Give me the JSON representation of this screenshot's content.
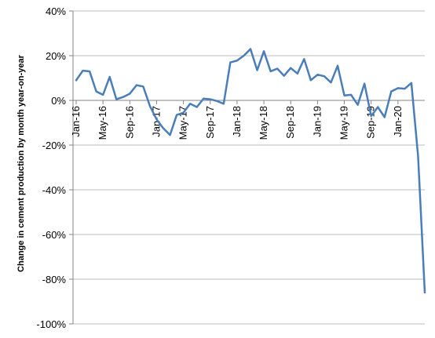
{
  "chart_data": {
    "type": "line",
    "title": "",
    "xlabel": "",
    "ylabel": "Change in cement production by month year-on-year",
    "ylim": [
      -100,
      40
    ],
    "ytick_values": [
      40,
      20,
      0,
      -20,
      -40,
      -60,
      -80,
      -100
    ],
    "ytick_labels": [
      "40%",
      "20%",
      "0%",
      "-20%",
      "-40%",
      "-60%",
      "-80%",
      "-100%"
    ],
    "x_labels": [
      {
        "index": 0,
        "label": "Jan-16"
      },
      {
        "index": 4,
        "label": "May-16"
      },
      {
        "index": 8,
        "label": "Sep-16"
      },
      {
        "index": 12,
        "label": "Jan-17"
      },
      {
        "index": 16,
        "label": "May-17"
      },
      {
        "index": 20,
        "label": "Sep-17"
      },
      {
        "index": 24,
        "label": "Jan-18"
      },
      {
        "index": 28,
        "label": "May-18"
      },
      {
        "index": 32,
        "label": "Sep-18"
      },
      {
        "index": 36,
        "label": "Jan-19"
      },
      {
        "index": 40,
        "label": "May-19"
      },
      {
        "index": 44,
        "label": "Sep-19"
      },
      {
        "index": 48,
        "label": "Jan-20"
      }
    ],
    "grid": "horizontal",
    "legend": "none",
    "series": [
      {
        "color": "#4a7ebb",
        "values": [
          9,
          13.3,
          13,
          4,
          2.5,
          10.5,
          0.5,
          1.5,
          3,
          6.8,
          6.2,
          -2.5,
          -8.5,
          -12.5,
          -15.5,
          -6.5,
          -5.5,
          -1.5,
          -3,
          0.8,
          0.5,
          -0.3,
          -1.5,
          17,
          17.8,
          20,
          23,
          13.5,
          22,
          13,
          14.2,
          11,
          14.5,
          12,
          18.5,
          9,
          11.5,
          10.8,
          8,
          15.5,
          2.2,
          2.5,
          -2,
          7.5,
          -7,
          -3,
          -7.5,
          4,
          5.5,
          5.2,
          7.8,
          -25,
          -86
        ]
      }
    ]
  }
}
